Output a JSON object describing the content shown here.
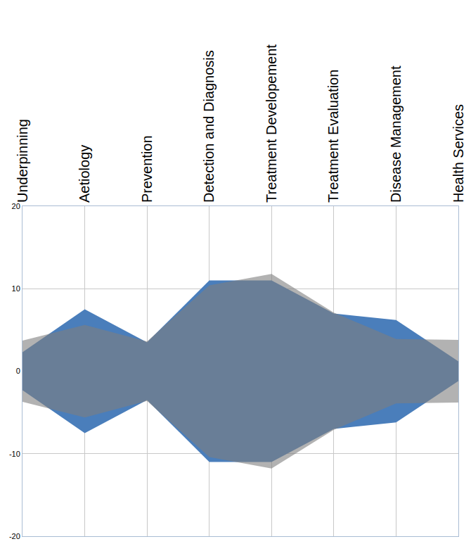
{
  "chart_data": {
    "type": "mirrored_area",
    "categories": [
      "Underpinning",
      "Aetiology",
      "Prevention",
      "Detection and Diagnosis",
      "Treatment Developement",
      "Treatment Evaluation",
      "Disease Management",
      "Health Services"
    ],
    "series": [
      {
        "color": "#4a7ebb",
        "values": [
          2.3,
          7.5,
          3.5,
          11,
          11,
          7,
          6.2,
          1.2
        ]
      },
      {
        "color": "#7f7f7f",
        "values": [
          3.7,
          5.6,
          3.6,
          10.4,
          11.8,
          7.1,
          3.9,
          3.8
        ]
      }
    ],
    "ylim": [
      -20,
      20
    ],
    "yticks": [
      -20,
      -10,
      0,
      10,
      20
    ],
    "grid": true
  }
}
